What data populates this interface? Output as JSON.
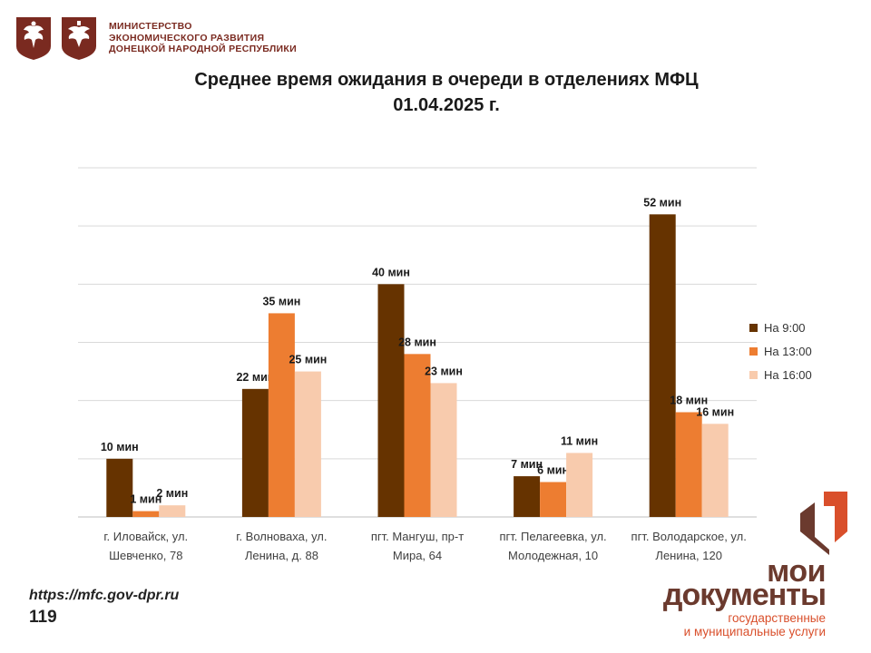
{
  "header": {
    "ministry_lines": [
      "МИНИСТЕРСТВО",
      "ЭКОНОМИЧЕСКОГО РАЗВИТИЯ",
      "ДОНЕЦКОЙ НАРОДНОЙ РЕСПУБЛИКИ"
    ],
    "emblem_left_icon": "russia-coat-of-arms-icon",
    "emblem_right_icon": "dpr-coat-of-arms-icon"
  },
  "chart_data": {
    "type": "bar",
    "title_lines": [
      "Среднее время ожидания в очереди в отделениях МФЦ",
      "01.04.2025 г."
    ],
    "categories": [
      [
        "г. Иловайск, ул.",
        "Шевченко, 78"
      ],
      [
        "г. Волноваха, ул.",
        "Ленина, д. 88"
      ],
      [
        "пгт. Мангуш, пр-т",
        "Мира, 64"
      ],
      [
        "пгт. Пелагеевка, ул.",
        "Молодежная, 10"
      ],
      [
        "пгт. Володарское, ул.",
        "Ленина, 120"
      ]
    ],
    "series": [
      {
        "name": "На 9:00",
        "color": "#663300",
        "values": [
          10,
          22,
          40,
          7,
          52
        ],
        "labels": [
          "10 мин",
          "22 мин",
          "40 мин",
          "7 мин",
          "52 мин"
        ]
      },
      {
        "name": "На 13:00",
        "color": "#ed7d31",
        "values": [
          1,
          35,
          28,
          6,
          18
        ],
        "labels": [
          "1 мин",
          "35 мин",
          "28 мин",
          "6 мин",
          "18 мин"
        ]
      },
      {
        "name": "На 16:00",
        "color": "#f8cbad",
        "values": [
          2,
          25,
          23,
          11,
          16
        ],
        "labels": [
          "2 мин",
          "25 мин",
          "23 мин",
          "11 мин",
          "16 мин"
        ]
      }
    ],
    "ylim": [
      0,
      60
    ],
    "grid": true,
    "legend_position": "right"
  },
  "footer": {
    "url": "https://mfc.gov-dpr.ru",
    "page_number": "119"
  },
  "brand": {
    "line1": "мои",
    "line2": "документы",
    "sub1": "государственные",
    "sub2": "и муниципальные услуги",
    "logo_icon": "mfc-logo-icon"
  }
}
